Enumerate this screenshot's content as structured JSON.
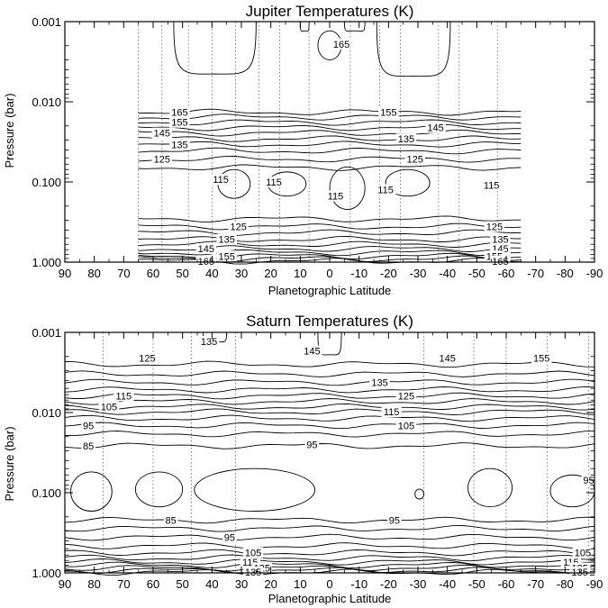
{
  "colors": {
    "line": "#000000",
    "background": "#ffffff",
    "reference_line": "#555555"
  },
  "chart_data": [
    {
      "type": "contour",
      "title": "Jupiter Temperatures (K)",
      "xlabel": "Planetographic Latitude",
      "ylabel": "Pressure (bar)",
      "x_range": [
        90,
        -90
      ],
      "x_ticks": [
        "90",
        "80",
        "70",
        "60",
        "50",
        "40",
        "30",
        "20",
        "10",
        "0",
        "-10",
        "-20",
        "-30",
        "-40",
        "-50",
        "-60",
        "-70",
        "-80",
        "-90"
      ],
      "y_range_bar": [
        0.001,
        1.0
      ],
      "y_scale": "log",
      "y_ticks": [
        "0.001",
        "0.010",
        "0.100",
        "1.000"
      ],
      "data_latitude_range": [
        65,
        -65
      ],
      "contour_interval_K": 5,
      "reference_latitudes": [
        65,
        57,
        48,
        40,
        32,
        24,
        17,
        7,
        -7,
        -17,
        -24,
        -37,
        -44,
        -57
      ],
      "upper_contours": [
        {
          "T": 165,
          "p": 0.0135
        },
        {
          "T": 160,
          "p": 0.0155
        },
        {
          "T": 155,
          "p": 0.018
        },
        {
          "T": 150,
          "p": 0.021
        },
        {
          "T": 145,
          "p": 0.0245
        },
        {
          "T": 140,
          "p": 0.029
        },
        {
          "T": 135,
          "p": 0.034
        },
        {
          "T": 130,
          "p": 0.041
        },
        {
          "T": 125,
          "p": 0.052
        },
        {
          "T": 120,
          "p": 0.066
        }
      ],
      "lower_contours": [
        {
          "T": 120,
          "p": 0.29
        },
        {
          "T": 125,
          "p": 0.36
        },
        {
          "T": 130,
          "p": 0.43
        },
        {
          "T": 135,
          "p": 0.52
        },
        {
          "T": 140,
          "p": 0.6
        },
        {
          "T": 145,
          "p": 0.68
        },
        {
          "T": 150,
          "p": 0.76
        },
        {
          "T": 155,
          "p": 0.84
        },
        {
          "T": 160,
          "p": 0.91
        },
        {
          "T": 165,
          "p": 0.97
        }
      ],
      "contour_labels": [
        {
          "text": "165",
          "lat": 51,
          "p": 0.0135
        },
        {
          "text": "155",
          "lat": 51,
          "p": 0.018
        },
        {
          "text": "145",
          "lat": 57,
          "p": 0.0245
        },
        {
          "text": "135",
          "lat": 51,
          "p": 0.034
        },
        {
          "text": "125",
          "lat": 57,
          "p": 0.052
        },
        {
          "text": "165",
          "lat": -4,
          "p": 0.0019
        },
        {
          "text": "155",
          "lat": -20,
          "p": 0.0135
        },
        {
          "text": "145",
          "lat": -36,
          "p": 0.021
        },
        {
          "text": "135",
          "lat": -26,
          "p": 0.029
        },
        {
          "text": "125",
          "lat": -29,
          "p": 0.052
        },
        {
          "text": "115",
          "lat": 37,
          "p": 0.093
        },
        {
          "text": "115",
          "lat": 19,
          "p": 0.1
        },
        {
          "text": "115",
          "lat": -2,
          "p": 0.15
        },
        {
          "text": "115",
          "lat": -19,
          "p": 0.125
        },
        {
          "text": "115",
          "lat": -55,
          "p": 0.11
        },
        {
          "text": "125",
          "lat": 31,
          "p": 0.36
        },
        {
          "text": "135",
          "lat": 35,
          "p": 0.52
        },
        {
          "text": "145",
          "lat": 42,
          "p": 0.68
        },
        {
          "text": "155",
          "lat": 35,
          "p": 0.84
        },
        {
          "text": "165",
          "lat": 42,
          "p": 0.97
        },
        {
          "text": "125",
          "lat": -56,
          "p": 0.36
        },
        {
          "text": "135",
          "lat": -58,
          "p": 0.52
        },
        {
          "text": "145",
          "lat": -58,
          "p": 0.68
        },
        {
          "text": "155",
          "lat": -56,
          "p": 0.84
        },
        {
          "text": "165",
          "lat": -58,
          "p": 0.97
        }
      ],
      "closed_contours": [
        {
          "lat_min": 38,
          "lat_max": 27,
          "p_top": 0.07,
          "p_bottom": 0.16
        },
        {
          "lat_min": 21,
          "lat_max": 8,
          "p_top": 0.075,
          "p_bottom": 0.15
        },
        {
          "lat_min": 0,
          "lat_max": -12,
          "p_top": 0.065,
          "p_bottom": 0.22
        },
        {
          "lat_min": -19,
          "lat_max": -34,
          "p_top": 0.07,
          "p_bottom": 0.15
        },
        {
          "lat_min": 4,
          "lat_max": -4,
          "p_top": 0.0013,
          "p_bottom": 0.003
        }
      ],
      "lobes": [
        {
          "lat_left": 53,
          "lat_right": 25,
          "p_bottom": 0.0045
        },
        {
          "lat_left": 10,
          "lat_right": 7,
          "p_bottom": 0.0013
        },
        {
          "lat_left": -5,
          "lat_right": -12,
          "p_bottom": 0.0013
        },
        {
          "lat_left": -16,
          "lat_right": -41,
          "p_bottom": 0.0048
        }
      ]
    },
    {
      "type": "contour",
      "title": "Saturn Temperatures (K)",
      "xlabel": "Planetographic Latitude",
      "ylabel": "Pressure (bar)",
      "x_range": [
        90,
        -90
      ],
      "x_ticks": [
        "90",
        "80",
        "70",
        "60",
        "50",
        "40",
        "30",
        "20",
        "10",
        "0",
        "-10",
        "-20",
        "-30",
        "-40",
        "-50",
        "-60",
        "-70",
        "-80",
        "-90"
      ],
      "y_range_bar": [
        0.001,
        1.0
      ],
      "y_scale": "log",
      "y_ticks": [
        "0.001",
        "0.010",
        "0.100",
        "1.000"
      ],
      "data_latitude_range": [
        90,
        -90
      ],
      "contour_interval_K": 5,
      "reference_latitudes": [
        77,
        60,
        47,
        32,
        -32,
        -49,
        -60,
        -74,
        -88
      ],
      "upper_contours": [
        {
          "T": 140,
          "p": 0.0025
        },
        {
          "T": 135,
          "p": 0.0033
        },
        {
          "T": 130,
          "p": 0.0042
        },
        {
          "T": 125,
          "p": 0.0052
        },
        {
          "T": 120,
          "p": 0.0062
        },
        {
          "T": 115,
          "p": 0.0073
        },
        {
          "T": 110,
          "p": 0.0085
        },
        {
          "T": 105,
          "p": 0.0098
        },
        {
          "T": 100,
          "p": 0.0118
        },
        {
          "T": 95,
          "p": 0.0145
        },
        {
          "T": 90,
          "p": 0.0185
        },
        {
          "T": 85,
          "p": 0.026
        }
      ],
      "lower_contours": [
        {
          "T": 85,
          "p": 0.22
        },
        {
          "T": 90,
          "p": 0.28
        },
        {
          "T": 95,
          "p": 0.36
        },
        {
          "T": 100,
          "p": 0.46
        },
        {
          "T": 105,
          "p": 0.56
        },
        {
          "T": 110,
          "p": 0.65
        },
        {
          "T": 115,
          "p": 0.73
        },
        {
          "T": 120,
          "p": 0.8
        },
        {
          "T": 125,
          "p": 0.87
        },
        {
          "T": 130,
          "p": 0.93
        },
        {
          "T": 135,
          "p": 0.98
        }
      ],
      "contour_labels": [
        {
          "text": "125",
          "lat": 62,
          "p": 0.0021
        },
        {
          "text": "135",
          "lat": 41,
          "p": 0.0013
        },
        {
          "text": "145",
          "lat": 6,
          "p": 0.0017
        },
        {
          "text": "145",
          "lat": -40,
          "p": 0.0021
        },
        {
          "text": "155",
          "lat": -72,
          "p": 0.0021
        },
        {
          "text": "135",
          "lat": -17,
          "p": 0.0042
        },
        {
          "text": "125",
          "lat": -26,
          "p": 0.0062
        },
        {
          "text": "115",
          "lat": 70,
          "p": 0.0062
        },
        {
          "text": "115",
          "lat": -21,
          "p": 0.0098
        },
        {
          "text": "105",
          "lat": 75,
          "p": 0.0085
        },
        {
          "text": "105",
          "lat": -26,
          "p": 0.0145
        },
        {
          "text": "95",
          "lat": 82,
          "p": 0.0145
        },
        {
          "text": "95",
          "lat": 6,
          "p": 0.025
        },
        {
          "text": "85",
          "lat": 82,
          "p": 0.026
        },
        {
          "text": "95",
          "lat": -88,
          "p": 0.07
        },
        {
          "text": "85",
          "lat": 54,
          "p": 0.22
        },
        {
          "text": "95",
          "lat": -22,
          "p": 0.22
        },
        {
          "text": "95",
          "lat": 34,
          "p": 0.36
        },
        {
          "text": "105",
          "lat": 26,
          "p": 0.56
        },
        {
          "text": "115",
          "lat": 27,
          "p": 0.73
        },
        {
          "text": "125",
          "lat": 23,
          "p": 0.87
        },
        {
          "text": "135",
          "lat": 26,
          "p": 0.98
        },
        {
          "text": "105",
          "lat": -86,
          "p": 0.56
        },
        {
          "text": "115",
          "lat": -82,
          "p": 0.73
        },
        {
          "text": "125",
          "lat": -85,
          "p": 0.87
        },
        {
          "text": "135",
          "lat": -85,
          "p": 0.98
        }
      ],
      "closed_contours": [
        {
          "lat_min": 88,
          "lat_max": 74,
          "p_top": 0.055,
          "p_bottom": 0.17
        },
        {
          "lat_min": 66,
          "lat_max": 50,
          "p_top": 0.055,
          "p_bottom": 0.15
        },
        {
          "lat_min": 46,
          "lat_max": 5,
          "p_top": 0.05,
          "p_bottom": 0.17
        },
        {
          "lat_min": -29,
          "lat_max": -32,
          "p_top": 0.09,
          "p_bottom": 0.12
        },
        {
          "lat_min": -47,
          "lat_max": -62,
          "p_top": 0.05,
          "p_bottom": 0.15
        },
        {
          "lat_min": -75,
          "lat_max": -90,
          "p_top": 0.06,
          "p_bottom": 0.15
        }
      ],
      "lobes": [
        {
          "lat_left": 4,
          "lat_right": -4,
          "p_bottom": 0.0019
        },
        {
          "lat_left": 43,
          "lat_right": 35,
          "p_bottom": 0.0013
        }
      ]
    }
  ]
}
